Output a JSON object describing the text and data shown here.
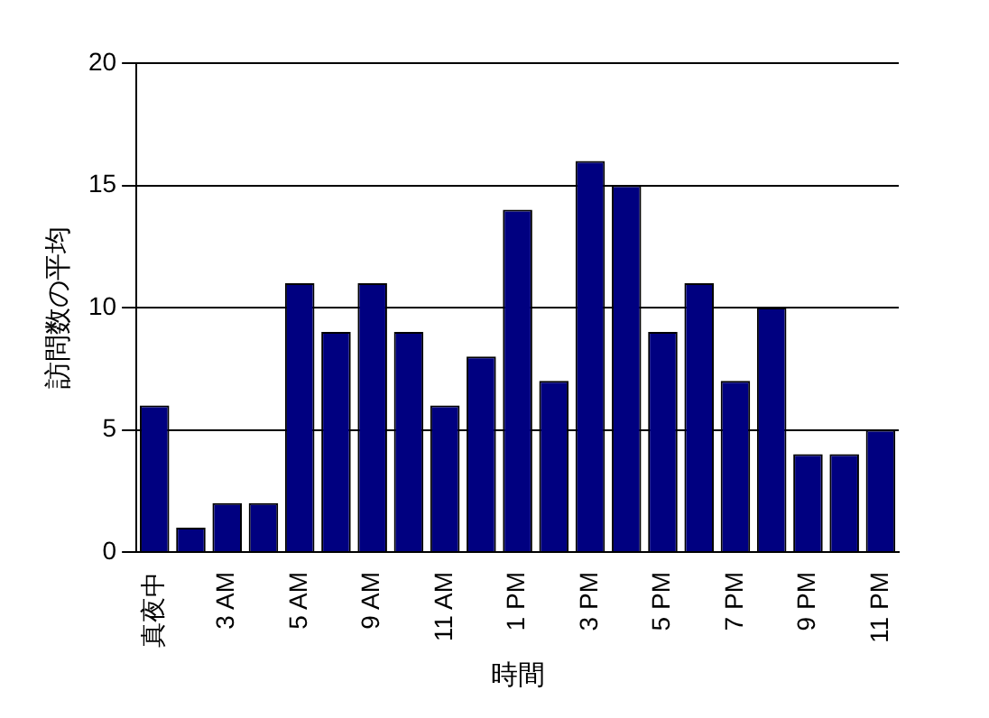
{
  "chart_data": {
    "type": "bar",
    "xlabel": "時間",
    "ylabel": "訪問数の平均",
    "categories": [
      "真夜中",
      null,
      "3 AM",
      null,
      "5 AM",
      null,
      "9 AM",
      null,
      "11 AM",
      null,
      "1 PM",
      null,
      "3 PM",
      null,
      "5 PM",
      null,
      "7 PM",
      null,
      "9 PM",
      null,
      "11 PM"
    ],
    "values": [
      6,
      1,
      2,
      2,
      11,
      9,
      11,
      9,
      6,
      8,
      14,
      7,
      16,
      15,
      9,
      11,
      7,
      10,
      4,
      4,
      5
    ],
    "color": "#000080",
    "ylim": [
      0,
      20
    ],
    "yticks": [
      0,
      5,
      10,
      15,
      20
    ],
    "grid": "y",
    "legend": false
  }
}
